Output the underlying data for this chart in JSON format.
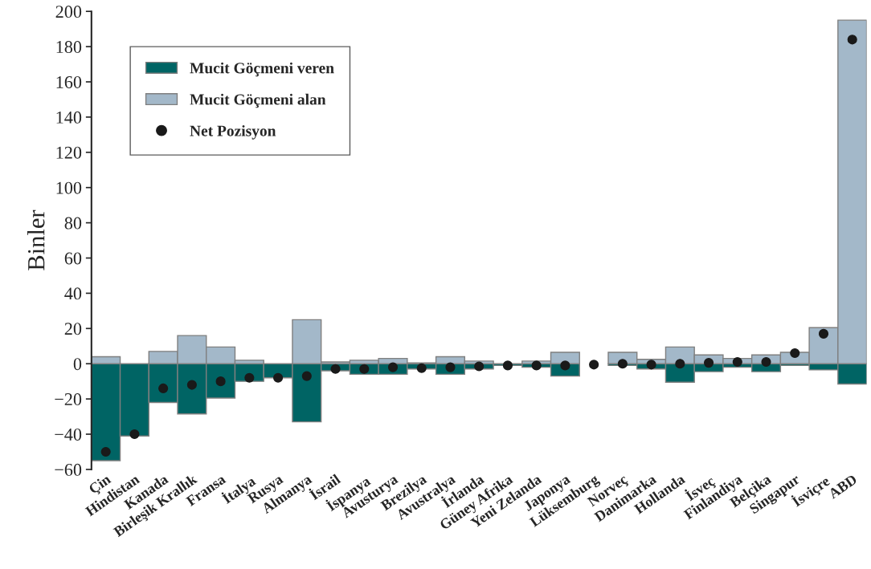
{
  "chart_data": {
    "type": "bar",
    "ylabel": "Binler",
    "categories": [
      "Çin",
      "Hindistan",
      "Kanada",
      "Birleşik Krallık",
      "Fransa",
      "İtalya",
      "Rusya",
      "Almanya",
      "İsrail",
      "İspanya",
      "Avusturya",
      "Brezilya",
      "Avustralya",
      "İrlanda",
      "Güney Afrika",
      "Yeni Zelanda",
      "Japonya",
      "Lüksemburg",
      "Norveç",
      "Danimarka",
      "Hollanda",
      "İsveç",
      "Finlandiya",
      "Belçika",
      "Singapur",
      "İsviçre",
      "ABD"
    ],
    "series": [
      {
        "name": "Mucit Göçmeni veren",
        "color": "#006464",
        "values": [
          -55,
          -41,
          -22,
          -28.5,
          -19.5,
          -10,
          -8,
          -33,
          -4,
          -6,
          -6,
          -3,
          -6,
          -3,
          -1,
          -2,
          -7,
          null,
          -1,
          -3,
          -10.5,
          -4.5,
          -2,
          -4.5,
          -1,
          -3.5,
          -11.5
        ]
      },
      {
        "name": "Mucit Göçmeni alan",
        "color": "#a3b8c9",
        "values": [
          4,
          null,
          7,
          16,
          9.5,
          2,
          null,
          25,
          1,
          2,
          3,
          0.5,
          4,
          1.5,
          null,
          1.5,
          6.5,
          null,
          6.5,
          2.5,
          9.5,
          5,
          3,
          5,
          6.5,
          20.5,
          195
        ]
      },
      {
        "name": "Net Pozisyon",
        "type": "scatter",
        "color": "#1a1a1a",
        "marker": "circle",
        "values": [
          -50,
          -40,
          -14,
          -12,
          -10,
          -8,
          -8,
          -7,
          -3,
          -3,
          -2,
          -2.5,
          -2,
          -1.5,
          -1,
          -1,
          -1,
          -0.5,
          0,
          -0.5,
          0,
          0.5,
          1,
          1,
          6,
          17,
          184
        ]
      }
    ],
    "ylim": [
      -60,
      200
    ],
    "yticks": [
      -60,
      -40,
      -20,
      0,
      20,
      40,
      60,
      80,
      100,
      120,
      140,
      160,
      180,
      200
    ],
    "stacked": true,
    "grid": false,
    "legend": "top left"
  }
}
